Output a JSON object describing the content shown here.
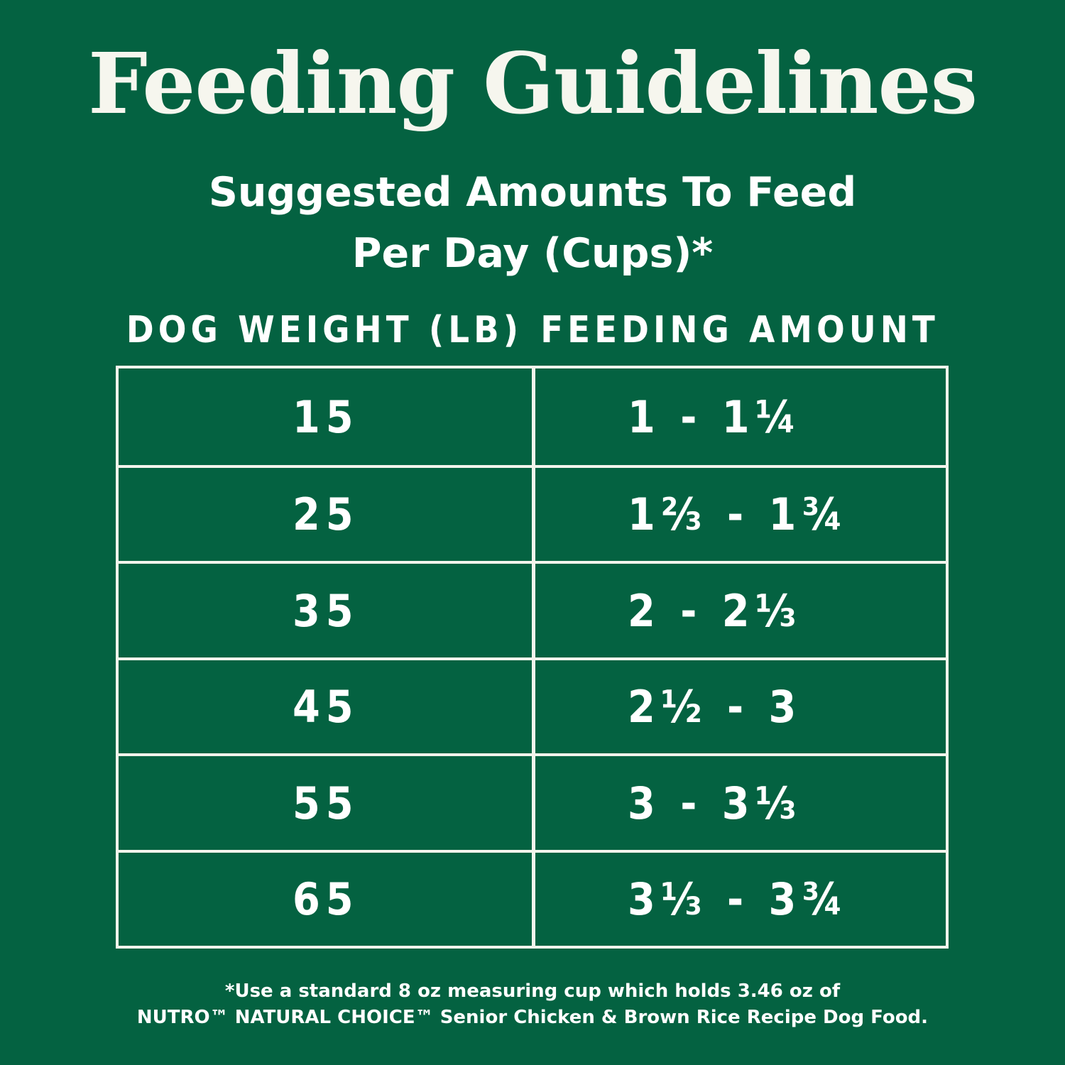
{
  "title": "Feeding Guidelines",
  "subtitle": {
    "line1": "Suggested Amounts To Feed",
    "line2": "Per Day (Cups)*"
  },
  "table": {
    "headers": [
      "DOG WEIGHT (LB)",
      "FEEDING AMOUNT"
    ],
    "rows": [
      {
        "weight": "15",
        "amount": "1 - 1¼"
      },
      {
        "weight": "25",
        "amount": "1⅔ - 1¾"
      },
      {
        "weight": "35",
        "amount": "2 - 2⅓"
      },
      {
        "weight": "45",
        "amount": "2½ - 3"
      },
      {
        "weight": "55",
        "amount": "3 - 3⅓"
      },
      {
        "weight": "65",
        "amount": "3⅓ - 3¾"
      }
    ]
  },
  "footnote": {
    "line1": "*Use a standard 8 oz measuring cup which holds 3.46 oz of",
    "line2": "NUTRO™ NATURAL CHOICE™ Senior Chicken & Brown Rice Recipe Dog Food."
  }
}
